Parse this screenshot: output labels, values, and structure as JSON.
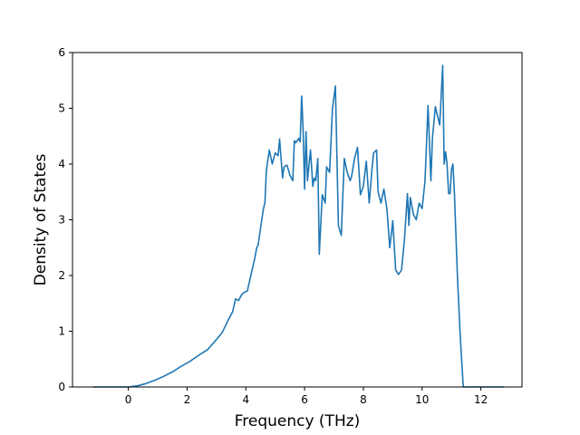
{
  "chart_data": {
    "type": "line",
    "title": "",
    "xlabel": "Frequency (THz)",
    "ylabel": "Density of States",
    "xlim": [
      -1.9,
      13.4
    ],
    "ylim": [
      0,
      6
    ],
    "xticks": [
      0,
      2,
      4,
      6,
      8,
      10,
      12
    ],
    "yticks": [
      0,
      1,
      2,
      3,
      4,
      5,
      6
    ],
    "grid": false,
    "color": "#1f77b4",
    "series": [
      {
        "x": [
          -1.2,
          -0.5,
          0.0,
          0.3,
          0.6,
          0.9,
          1.2,
          1.5,
          1.8,
          2.1,
          2.4,
          2.7,
          3.0,
          3.2,
          3.4,
          3.55,
          3.65,
          3.75,
          3.85,
          3.95,
          4.05,
          4.15,
          4.3,
          4.37,
          4.42,
          4.5,
          4.6,
          4.65,
          4.7,
          4.8,
          4.9,
          5.0,
          5.1,
          5.15,
          5.25,
          5.3,
          5.4,
          5.5,
          5.6,
          5.65,
          5.7,
          5.8,
          5.85,
          5.9,
          5.95,
          6.0,
          6.05,
          6.1,
          6.2,
          6.28,
          6.33,
          6.38,
          6.45,
          6.5,
          6.6,
          6.7,
          6.75,
          6.85,
          6.95,
          7.05,
          7.15,
          7.25,
          7.35,
          7.45,
          7.55,
          7.6,
          7.7,
          7.8,
          7.9,
          8.0,
          8.1,
          8.2,
          8.3,
          8.35,
          8.45,
          8.5,
          8.6,
          8.7,
          8.8,
          8.9,
          9.0,
          9.1,
          9.2,
          9.3,
          9.4,
          9.5,
          9.55,
          9.6,
          9.7,
          9.8,
          9.9,
          10.0,
          10.1,
          10.2,
          10.3,
          10.35,
          10.45,
          10.6,
          10.7,
          10.75,
          10.8,
          10.85,
          10.9,
          10.95,
          11.0,
          11.05,
          11.1,
          11.2,
          11.3,
          11.4,
          11.5,
          11.55,
          11.65,
          11.7,
          12.8
        ],
        "y": [
          0.0,
          0.0,
          0.0,
          0.02,
          0.06,
          0.12,
          0.19,
          0.27,
          0.37,
          0.46,
          0.57,
          0.67,
          0.85,
          0.98,
          1.2,
          1.35,
          1.58,
          1.55,
          1.65,
          1.7,
          1.72,
          1.95,
          2.3,
          2.5,
          2.55,
          2.85,
          3.2,
          3.3,
          3.9,
          4.25,
          4.0,
          4.2,
          4.15,
          4.45,
          3.75,
          3.95,
          3.98,
          3.8,
          3.7,
          4.42,
          4.38,
          4.46,
          4.4,
          5.22,
          4.6,
          3.55,
          4.58,
          3.7,
          4.25,
          3.6,
          3.75,
          3.7,
          4.1,
          2.38,
          3.45,
          3.3,
          3.95,
          3.85,
          5.0,
          5.4,
          2.9,
          2.72,
          4.1,
          3.85,
          3.7,
          3.78,
          4.1,
          4.3,
          3.45,
          3.6,
          4.05,
          3.3,
          3.95,
          4.2,
          4.25,
          3.5,
          3.3,
          3.55,
          3.2,
          2.5,
          2.98,
          2.1,
          2.02,
          2.1,
          2.65,
          3.47,
          2.9,
          3.4,
          3.1,
          3.0,
          3.3,
          3.2,
          3.7,
          5.05,
          3.7,
          4.45,
          5.03,
          4.7,
          5.77,
          4.0,
          4.22,
          4.0,
          3.47,
          3.47,
          3.9,
          4.0,
          3.5,
          2.0,
          0.9,
          0.0,
          0.0,
          0.0,
          0.0,
          0.0,
          0.0
        ]
      }
    ]
  }
}
